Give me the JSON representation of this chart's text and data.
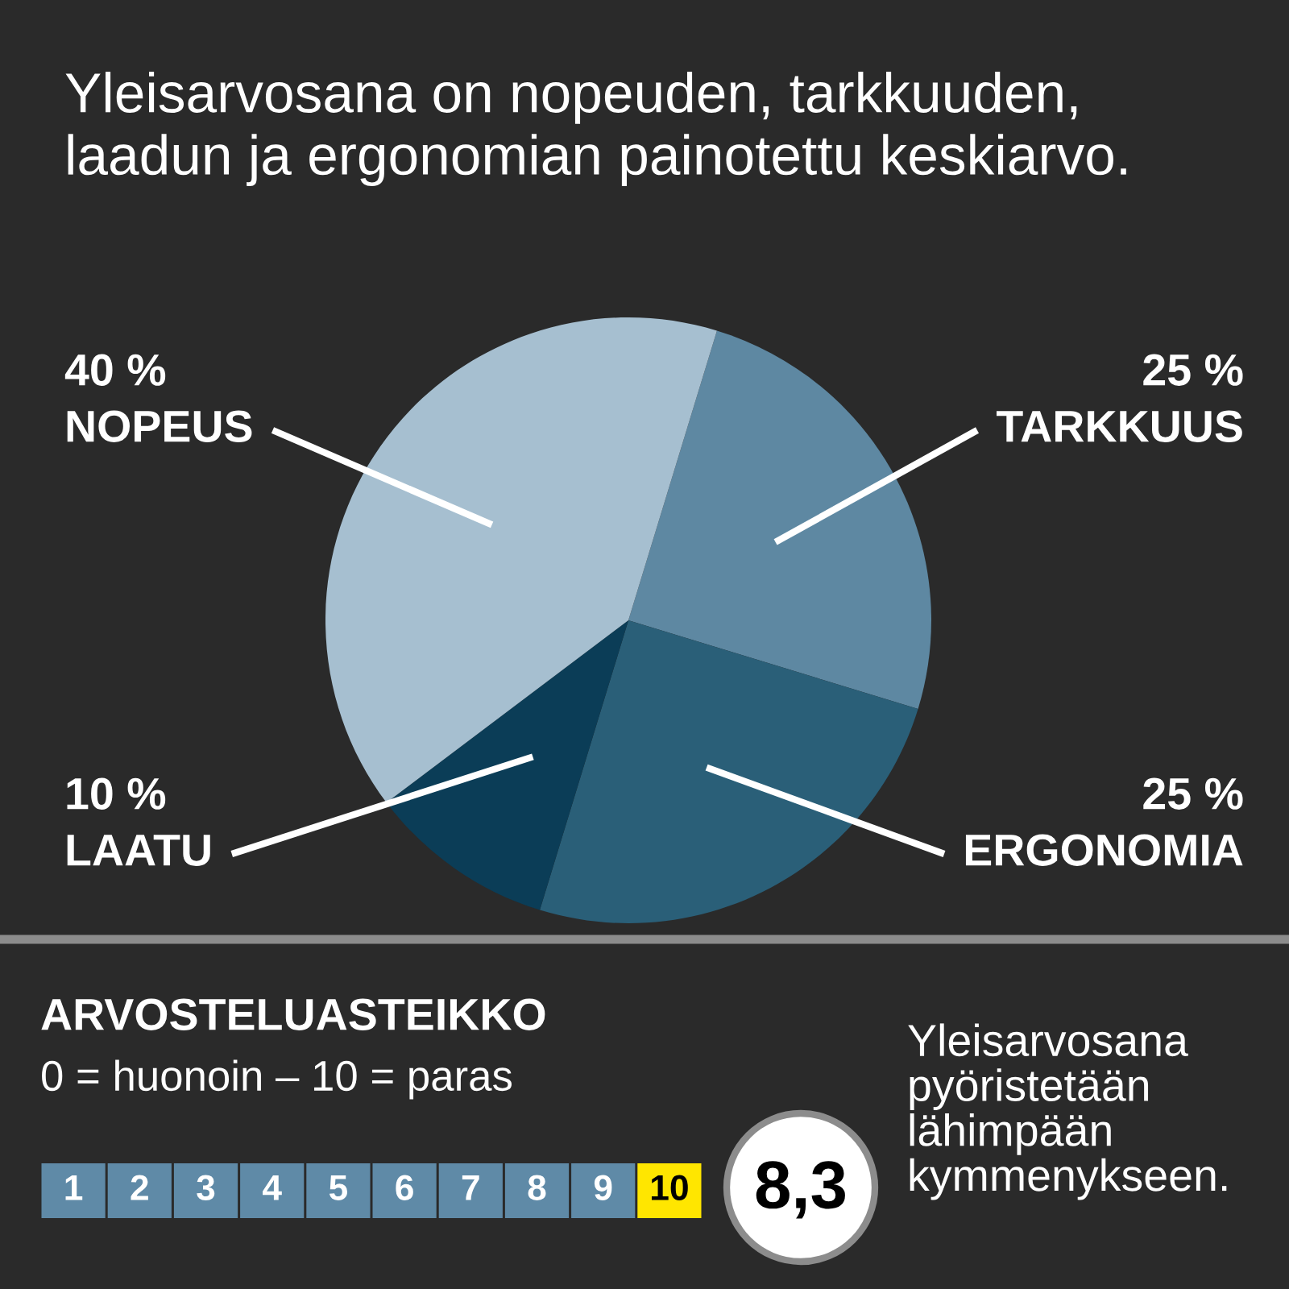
{
  "chart_data": {
    "type": "pie",
    "title": "Yleisarvosana on nopeuden, tarkkuuden,\nlaadun ja ergonomian painotettu keskiarvo.",
    "categories": [
      "TARKKUUS",
      "ERGONOMIA",
      "LAATU",
      "NOPEUS"
    ],
    "values": [
      25,
      25,
      10,
      40
    ],
    "colors": [
      "#5e88a2",
      "#2a5f78",
      "#0b3d57",
      "#a6bfd0"
    ],
    "value_labels": [
      "25 %",
      "25 %",
      "10 %",
      "40 %"
    ],
    "annotations": [
      "ARVOSTELUASTEIKKO",
      "0 = huonoin – 10 = paras",
      "1",
      "2",
      "3",
      "4",
      "5",
      "6",
      "7",
      "8",
      "9",
      "10",
      "8,3",
      "Yleisarvosana\npyöristetään\nlähimpään\nkymmenykseen."
    ]
  }
}
